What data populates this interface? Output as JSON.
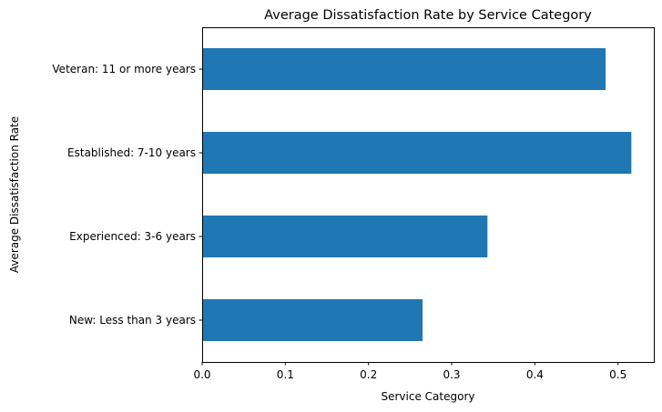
{
  "chart_data": {
    "type": "bar",
    "orientation": "horizontal",
    "title": "Average Dissatisfaction Rate by Service Category",
    "xlabel": "Service Category",
    "ylabel": "Average Dissatisfaction Rate",
    "categories": [
      "New: Less than 3 years",
      "Experienced: 3-6 years",
      "Established: 7-10 years",
      "Veteran: 11 or more years"
    ],
    "values": [
      0.265,
      0.343,
      0.516,
      0.485
    ],
    "xlim": [
      0,
      0.543
    ],
    "xticks": [
      0.0,
      0.1,
      0.2,
      0.3,
      0.4,
      0.5
    ],
    "xtick_labels": [
      "0.0",
      "0.1",
      "0.2",
      "0.3",
      "0.4",
      "0.5"
    ],
    "bar_color": "#1f77b4",
    "grid": false,
    "legend": "none"
  }
}
